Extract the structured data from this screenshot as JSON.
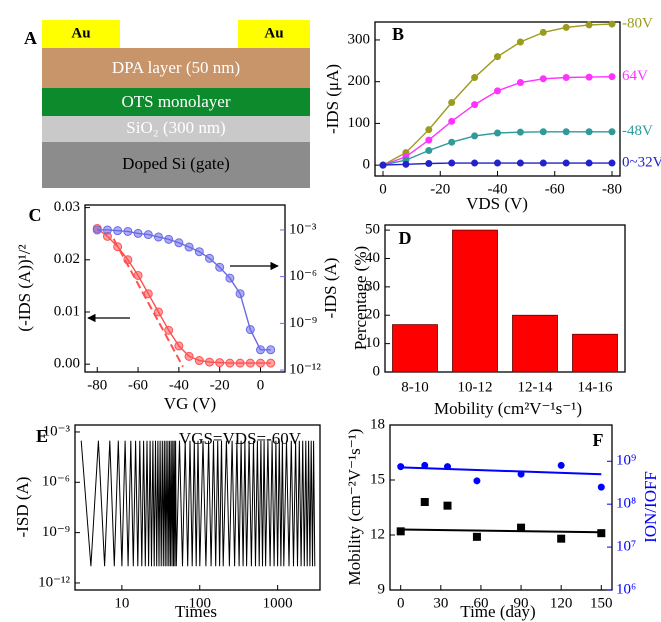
{
  "panel_a": {
    "label": "A",
    "electrodes": [
      "Au",
      "Au"
    ],
    "layers": [
      "DPA layer (50 nm)",
      "OTS monolayer",
      "SiO₂ (300 nm)",
      "Doped Si (gate)"
    ]
  },
  "chart_data": [
    {
      "type": "line",
      "panel": "B",
      "x_label": "VDS (V)",
      "y_label": "-IDS (μA)",
      "x": [
        0,
        -8,
        -16,
        -24,
        -32,
        -40,
        -48,
        -56,
        -64,
        -72,
        -80
      ],
      "xlim": [
        2.8,
        -82.8
      ],
      "xticks": [
        0,
        -20,
        -40,
        -60,
        -80
      ],
      "ylim": [
        -26,
        343
      ],
      "yticks": [
        0,
        100,
        200,
        300
      ],
      "series": [
        {
          "name": "-80V",
          "color": "#9b9b1c",
          "marker": "circle",
          "values": [
            0,
            30,
            85,
            150,
            210,
            260,
            295,
            318,
            330,
            336,
            338
          ]
        },
        {
          "name": "64V",
          "color": "#ff33ff",
          "marker": "circle",
          "values": [
            0,
            20,
            60,
            105,
            145,
            178,
            198,
            207,
            210,
            211,
            212
          ]
        },
        {
          "name": "-48V",
          "color": "#2e9a9a",
          "marker": "circle",
          "values": [
            0,
            12,
            35,
            55,
            70,
            77,
            79,
            80,
            80,
            80,
            80
          ]
        },
        {
          "name": "0~32V",
          "color": "#2222cc",
          "marker": "circle",
          "values": [
            0,
            2,
            4,
            5,
            5,
            5,
            5,
            5,
            5,
            5,
            5
          ]
        }
      ]
    },
    {
      "type": "line",
      "panel": "C",
      "x_label": "VG (V)",
      "y_label": "(-IDS (A))¹/²",
      "y2_label": "-IDS (A)",
      "x": [
        -80,
        -75,
        -70,
        -65,
        -60,
        -55,
        -50,
        -45,
        -40,
        -35,
        -30,
        -25,
        -20,
        -15,
        -10,
        -5,
        0,
        5
      ],
      "xlim": [
        -86,
        12
      ],
      "xticks": [
        -80,
        -60,
        -40,
        -20,
        0
      ],
      "ylim": [
        -0.0015,
        0.0305
      ],
      "yticks": [
        {
          "value": 0,
          "label": "0.00"
        },
        {
          "value": 0.01,
          "label": "0.01"
        },
        {
          "value": 0.02,
          "label": "0.02"
        },
        {
          "value": 0.03,
          "label": "0.03"
        }
      ],
      "y2scale": "log",
      "y2lim": [
        7.5e-13,
        0.04
      ],
      "y2ticks": [
        {
          "value": 1e-12,
          "label": "10⁻¹²"
        },
        {
          "value": 1e-09,
          "label": "10⁻⁹"
        },
        {
          "value": 1e-06,
          "label": "10⁻⁶"
        },
        {
          "value": 0.001,
          "label": "10⁻³"
        }
      ],
      "series": [
        {
          "color": "#ff5050",
          "marker": "circle",
          "values": [
            0.026,
            0.0245,
            0.0225,
            0.02,
            0.017,
            0.0135,
            0.01,
            0.0065,
            0.0035,
            0.0015,
            0.0007,
            0.0004,
            0.0003,
            0.0002,
            0.0002,
            0.0002,
            0.0002,
            0.0002
          ],
          "fit": {
            "x": [
              -72,
              -38
            ],
            "values": [
              0.024,
              -0.0005
            ]
          }
        },
        {
          "color": "#6a6ae8",
          "marker": "circle",
          "axis": "y2",
          "values": [
            0.001,
            0.001,
            0.0009,
            0.0008,
            0.0006,
            0.0005,
            0.00035,
            0.00025,
            0.00015,
            8e-05,
            4e-05,
            1.5e-05,
            4e-06,
            8e-07,
            8e-08,
            4e-10,
            2e-11,
            2e-11
          ]
        }
      ]
    },
    {
      "type": "bar",
      "panel": "D",
      "x_label": "Mobility (cm²V⁻¹s⁻¹)",
      "y_label": "Percentage (%)",
      "categories": [
        "8-10",
        "10-12",
        "12-14",
        "14-16"
      ],
      "values": [
        16.7,
        50,
        20,
        13.3
      ],
      "color": "#ff0000",
      "ylim": [
        0,
        51.8
      ],
      "yticks": [
        0,
        10,
        20,
        30,
        40,
        50
      ]
    },
    {
      "type": "line",
      "panel": "E",
      "x_label": "Times",
      "y_label": "-ISD (A)",
      "annotation": "VGS=VDS=-60V",
      "xscale": "log",
      "xlim": [
        2.5,
        3500
      ],
      "xticks": [
        10,
        100,
        1000
      ],
      "yscale": "log",
      "ylim": [
        3.8e-13,
        0.0026
      ],
      "yticks": [
        {
          "value": 1e-12,
          "label": "10⁻¹²"
        },
        {
          "value": 1e-09,
          "label": "10⁻⁹"
        },
        {
          "value": 1e-06,
          "label": "10⁻⁶"
        },
        {
          "value": 0.001,
          "label": "10⁻³"
        }
      ],
      "x": [
        3,
        4,
        5,
        6,
        7,
        8,
        9,
        10,
        11,
        12,
        13,
        14,
        15,
        16,
        17,
        18,
        19,
        20,
        21,
        22,
        23,
        24,
        25,
        26,
        27,
        28,
        29,
        30,
        31,
        32,
        33,
        34,
        35,
        36,
        37,
        38,
        39,
        40,
        41,
        42,
        43,
        44,
        45,
        46,
        47,
        48,
        49,
        50,
        55,
        60,
        65,
        70,
        75,
        80,
        85,
        90,
        95,
        100,
        110,
        120,
        130,
        140,
        150,
        160,
        170,
        180,
        190,
        200,
        220,
        240,
        260,
        280,
        300,
        320,
        340,
        360,
        380,
        400,
        430,
        460,
        490,
        520,
        550,
        580,
        610,
        640,
        670,
        700,
        750,
        800,
        850,
        900,
        950,
        1000,
        1050,
        1100,
        1150,
        1200,
        1300,
        1400,
        1500,
        1600,
        1700,
        1800,
        1900,
        2000,
        2100,
        2200,
        2300,
        2400,
        2500,
        2600,
        2700,
        2800,
        2900,
        3000
      ],
      "series": [
        {
          "color": "#000000",
          "values": [
            0.0003,
            1e-11,
            0.0003,
            1e-11,
            0.0003,
            1e-11,
            0.0003,
            1e-11,
            0.0003,
            1e-11,
            0.0003,
            1e-11,
            0.0003,
            1e-11,
            0.0003,
            1e-11,
            0.0003,
            1e-11,
            0.0003,
            1e-11,
            0.0003,
            1e-11,
            0.0003,
            1e-11,
            0.0003,
            1e-11,
            0.0003,
            1e-11,
            0.0003,
            1e-11,
            0.0003,
            1e-11,
            0.0003,
            1e-11,
            0.0003,
            1e-11,
            0.0003,
            1e-11,
            0.0003,
            1e-11,
            0.0003,
            1e-11,
            0.0003,
            1e-11,
            0.0003,
            1e-11,
            0.0003,
            1e-11,
            0.0003,
            1e-11,
            0.0003,
            1e-11,
            0.0003,
            1e-11,
            0.0003,
            1e-11,
            0.0003,
            1e-11,
            0.0003,
            1e-11,
            0.0003,
            1e-11,
            0.0003,
            1e-11,
            0.0003,
            1e-11,
            0.0003,
            1e-11,
            0.0003,
            1e-11,
            0.0003,
            1e-11,
            0.0003,
            1e-11,
            0.0003,
            1e-11,
            0.0003,
            1e-11,
            0.0003,
            1e-11,
            0.0003,
            1e-11,
            0.0003,
            1e-11,
            0.0003,
            1e-11,
            0.0003,
            1e-11,
            0.0003,
            1e-11,
            0.0003,
            1e-11,
            0.0003,
            1e-11,
            0.0003,
            1e-11,
            0.0003,
            1e-11,
            0.0003,
            1e-11,
            0.0003,
            1e-11,
            0.0003,
            1e-11,
            0.0003,
            1e-11,
            0.0003,
            1e-11,
            0.0003,
            1e-11,
            0.0003,
            1e-11,
            0.0003,
            1e-11,
            0.0003,
            1e-11
          ]
        }
      ]
    },
    {
      "type": "scatter",
      "panel": "F",
      "x_label": "Time (day)",
      "y_label": "Mobility (cm⁻²V⁻¹s⁻¹)",
      "y2_label": "ION/IOFF",
      "x": [
        0,
        18,
        35,
        57,
        90,
        120,
        150
      ],
      "xlim": [
        -8,
        158
      ],
      "xticks": [
        0,
        30,
        60,
        90,
        120,
        150
      ],
      "ylim": [
        9,
        18
      ],
      "yticks": [
        9,
        12,
        15,
        18
      ],
      "y2scale": "log",
      "y2lim": [
        1000000,
        7000000000
      ],
      "y2ticks": [
        {
          "value": 1000000,
          "label": "10⁶"
        },
        {
          "value": 10000000,
          "label": "10⁷"
        },
        {
          "value": 100000000,
          "label": "10⁸"
        },
        {
          "value": 1000000000,
          "label": "10⁹"
        }
      ],
      "series": [
        {
          "color": "#000000",
          "marker": "square",
          "values": [
            12.2,
            13.8,
            13.6,
            11.9,
            12.4,
            11.8,
            12.1
          ],
          "fit": {
            "x": [
              0,
              150
            ],
            "values": [
              12.3,
              12.15
            ]
          }
        },
        {
          "color": "#0000ff",
          "marker": "circle",
          "axis": "y2",
          "values": [
            750000000,
            800000000,
            750000000,
            350000000,
            500000000,
            800000000,
            250000000
          ],
          "fit": {
            "x": [
              0,
              150
            ],
            "values": [
              720000000,
              500000000
            ]
          }
        }
      ]
    }
  ]
}
